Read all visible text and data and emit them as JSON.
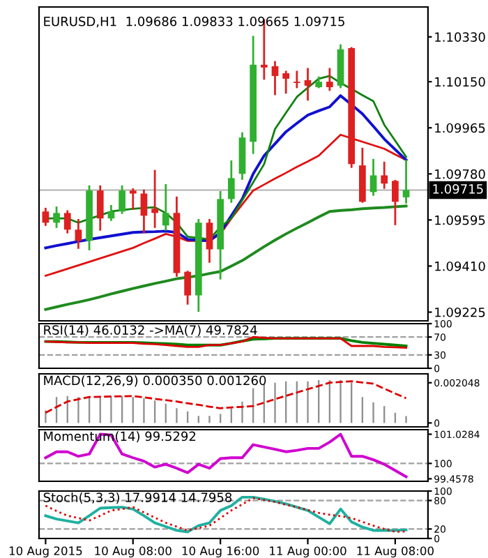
{
  "chart_data": [
    {
      "type": "candlestick",
      "title": "EURUSD,H1  1.09686 1.09833 1.09665 1.09715",
      "categories": [
        null,
        null,
        null,
        null,
        null,
        null,
        null,
        null,
        null,
        null,
        null,
        null,
        null,
        null,
        null,
        null,
        null,
        null,
        null,
        null,
        null,
        null,
        null,
        null,
        null,
        null,
        null,
        null,
        null,
        null,
        null,
        null,
        null,
        null
      ],
      "ohlc": [
        [
          1.09629,
          1.0964,
          1.09575,
          1.09584
        ],
        [
          1.09584,
          1.09645,
          1.09567,
          1.09623
        ],
        [
          1.09623,
          1.0963,
          1.09545,
          1.09556
        ],
        [
          1.09556,
          1.09595,
          1.09483,
          1.09511
        ],
        [
          1.09511,
          1.0973,
          1.09477,
          1.09713
        ],
        [
          1.09713,
          1.0973,
          1.09556,
          1.09601
        ],
        [
          1.09601,
          1.09651,
          1.09595,
          1.09629
        ],
        [
          1.09629,
          1.0973,
          1.09623,
          1.09713
        ],
        [
          1.09713,
          1.09718,
          1.0964,
          1.09701
        ],
        [
          1.09701,
          1.09713,
          1.09545,
          1.09612
        ],
        [
          1.0964,
          1.09792,
          1.09567,
          1.09623
        ],
        [
          1.09573,
          1.09735,
          1.09556,
          1.09623
        ],
        [
          1.09623,
          1.09685,
          1.09371,
          1.09382
        ],
        [
          1.09387,
          1.09387,
          1.09259,
          1.09292
        ],
        [
          1.09292,
          1.09595,
          1.0923,
          1.09584
        ],
        [
          1.09584,
          1.09595,
          1.09427,
          1.09477
        ],
        [
          1.09477,
          1.09707,
          1.0936,
          1.09679
        ],
        [
          1.09679,
          1.0983,
          1.09668,
          1.09763
        ],
        [
          1.0978,
          1.09943,
          1.0976,
          1.09926
        ],
        [
          1.09909,
          1.1033,
          1.09864,
          1.10218
        ],
        [
          1.10218,
          1.10397,
          1.10162,
          1.10207
        ],
        [
          1.10212,
          1.10229,
          1.101,
          1.10173
        ],
        [
          1.10184,
          1.1019,
          1.10106,
          1.10162
        ],
        [
          1.1015,
          1.1019,
          1.10128,
          1.10145
        ],
        [
          1.10156,
          1.10201,
          1.10078,
          1.10134
        ],
        [
          1.10128,
          1.10167,
          1.10128,
          1.1015
        ],
        [
          1.1015,
          1.10201,
          1.10117,
          1.10128
        ],
        [
          1.10134,
          1.10296,
          1.10128,
          1.1028
        ],
        [
          1.10285,
          1.10285,
          1.09808,
          1.09819
        ],
        [
          1.09814,
          1.09881,
          1.09668,
          1.09668
        ],
        [
          1.09707,
          1.09836,
          1.09696,
          1.09774
        ],
        [
          1.09774,
          1.09825,
          1.09724,
          1.09741
        ],
        [
          1.09752,
          1.09752,
          1.09578,
          1.09668
        ],
        [
          1.09686,
          1.09833,
          1.09665,
          1.09715
        ]
      ],
      "colors": [
        "#dd2020",
        "#30b030",
        "#dd2020",
        "#dd2020",
        "#30b030",
        "#dd2020",
        "#30b030",
        "#30b030",
        "#dd2020",
        "#dd2020",
        "#dd2020",
        "#30b030",
        "#dd2020",
        "#dd2020",
        "#30b030",
        "#dd2020",
        "#30b030",
        "#30b030",
        "#30b030",
        "#30b030",
        "#dd2020",
        "#dd2020",
        "#dd2020",
        "#dd2020",
        "#dd2020",
        "#30b030",
        "#dd2020",
        "#30b030",
        "#dd2020",
        "#dd2020",
        "#30b030",
        "#dd2020",
        "#dd2020",
        "#30b030"
      ],
      "series": [
        {
          "type": "line",
          "color": "#1f8a1f",
          "values": [
            1.09236,
            1.09246,
            1.09256,
            1.09265,
            1.09275,
            1.09286,
            1.09298,
            1.09309,
            1.0932,
            1.0933,
            1.0934,
            1.09349,
            1.09359,
            1.09365,
            1.09371,
            1.0938,
            1.09388,
            1.0941,
            1.09432,
            1.0946,
            1.09488,
            1.09514,
            1.09539,
            1.09562,
            1.09584,
            1.09607,
            1.09629,
            1.09633,
            1.09636,
            1.0964,
            1.09643,
            1.09645,
            1.09648,
            1.09651
          ]
        },
        {
          "type": "line",
          "color": "#e01010",
          "values": [
            1.09371,
            1.09385,
            1.09399,
            1.09413,
            1.09427,
            1.09441,
            1.09455,
            1.09469,
            1.09483,
            1.09502,
            1.0952,
            1.09539,
            1.09528,
            1.09511,
            1.09511,
            1.09511,
            1.09539,
            1.09601,
            1.09657,
            1.09713,
            1.09737,
            1.09761,
            1.09784,
            1.09808,
            1.0983,
            1.09853,
            1.09895,
            1.09937,
            1.09923,
            1.09909,
            1.09895,
            1.09881,
            1.09858,
            1.09836
          ]
        },
        {
          "type": "line",
          "color": "#1010d0",
          "values": [
            1.09483,
            1.09492,
            1.095,
            1.09509,
            1.09517,
            1.09524,
            1.09531,
            1.09538,
            1.09545,
            1.09547,
            1.09548,
            1.0955,
            1.09545,
            1.09517,
            1.09514,
            1.09511,
            1.09545,
            1.09612,
            1.09679,
            1.0978,
            1.09853,
            1.09901,
            1.09949,
            1.09983,
            1.10016,
            1.10033,
            1.10049,
            1.10094,
            1.10058,
            1.10021,
            1.09971,
            1.0992,
            1.09878,
            1.09836
          ]
        },
        {
          "type": "line",
          "color": "#108010",
          "values": [
            1.09601,
            1.09601,
            1.09601,
            1.09584,
            1.09599,
            1.09614,
            1.09629,
            1.09635,
            1.0964,
            1.09643,
            1.09646,
            1.09623,
            1.09584,
            1.09528,
            1.09523,
            1.09517,
            1.09567,
            1.09601,
            1.09674,
            1.09746,
            1.09819,
            1.0996,
            1.10025,
            1.10089,
            1.10126,
            1.10162,
            1.10173,
            1.10145,
            1.10121,
            1.10096,
            1.10072,
            1.09977,
            1.09913,
            1.09848
          ]
        }
      ],
      "ylim": [
        1.0919,
        1.1045
      ],
      "yticks": [
        {
          "value": 1.1033,
          "label": "1.10330"
        },
        {
          "value": 1.1015,
          "label": "1.10150"
        },
        {
          "value": 1.09965,
          "label": "1.09965"
        },
        {
          "value": 1.0978,
          "label": "1.09780"
        },
        {
          "value": 1.09595,
          "label": "1.09595"
        },
        {
          "value": 1.0941,
          "label": "1.09410"
        },
        {
          "value": 1.09225,
          "label": "1.09225"
        }
      ],
      "ref_lines": [
        {
          "axis": "y",
          "value": 1.09715,
          "label": "1.09715",
          "color": "#b0b0b0"
        }
      ],
      "tick_labels": "y"
    },
    {
      "type": "line",
      "title": "RSI(14) 46.0132 ->MA(7) 49.7824",
      "categories": [
        null,
        null,
        null,
        null,
        null,
        null,
        null,
        null,
        null,
        null,
        null,
        null,
        null,
        null,
        null,
        null,
        null,
        null,
        null,
        null,
        null,
        null,
        null,
        null,
        null,
        null,
        null,
        null,
        null,
        null,
        null,
        null,
        null,
        null
      ],
      "series": [
        {
          "color": "#008000",
          "values": [
            60,
            60,
            59,
            58,
            58,
            58,
            58,
            58,
            58,
            57,
            56,
            55,
            54,
            52,
            52,
            52,
            52,
            56,
            61,
            65,
            66,
            67,
            67,
            67,
            67,
            67,
            67,
            67,
            62,
            58,
            56,
            54,
            52,
            50
          ]
        },
        {
          "color": "#dd0000",
          "values": [
            60,
            59,
            58,
            58,
            57,
            57,
            57,
            57,
            57,
            55,
            54,
            52,
            50,
            48,
            48,
            52,
            52,
            56,
            60,
            70,
            68,
            67,
            67,
            67,
            67,
            67,
            67,
            67,
            50,
            50,
            50,
            48,
            47,
            46
          ]
        }
      ],
      "ylim": [
        0,
        100
      ],
      "yticks": [
        100,
        70,
        30,
        0
      ],
      "ref_lines": [
        {
          "axis": "y",
          "value": 70,
          "color": "#a0a0a0",
          "line_style": "dashed"
        },
        {
          "axis": "y",
          "value": 30,
          "color": "#a0a0a0",
          "line_style": "dashed"
        }
      ],
      "tick_labels": "y"
    },
    {
      "type": "bar",
      "title": "MACD(12,26,9) 0.000350 0.001260",
      "categories": [
        null,
        null,
        null,
        null,
        null,
        null,
        null,
        null,
        null,
        null,
        null,
        null,
        null,
        null,
        null,
        null,
        null,
        null,
        null,
        null,
        null,
        null,
        null,
        null,
        null,
        null,
        null,
        null,
        null,
        null,
        null,
        null,
        null,
        null
      ],
      "series": [
        {
          "type": "bar",
          "color": "#909090",
          "values": [
            0.00064,
            0.00132,
            0.00137,
            0.00132,
            0.00132,
            0.00137,
            0.00137,
            0.00137,
            0.00132,
            0.00125,
            0.00114,
            0.00098,
            0.00075,
            0.00059,
            0.00036,
            0.00036,
            0.00046,
            0.00075,
            0.00109,
            0.00177,
            0.002,
            0.00205,
            0.00212,
            0.00212,
            0.00212,
            0.00218,
            0.00218,
            0.00218,
            0.00205,
            0.00132,
            0.00105,
            0.00086,
            0.00052,
            0.00035
          ]
        },
        {
          "type": "line",
          "color": "#dd0000",
          "line_style": "dashed",
          "values": [
            0.00052,
            0.00081,
            0.00109,
            0.00121,
            0.00132,
            0.00133,
            0.00135,
            0.00136,
            0.00137,
            0.0013,
            0.00123,
            0.00116,
            0.00109,
            0.001,
            0.00092,
            0.00083,
            0.00075,
            0.00079,
            0.00082,
            0.00086,
            0.00103,
            0.00121,
            0.00138,
            0.00155,
            0.00172,
            0.00188,
            0.00205,
            0.00209,
            0.00212,
            0.00206,
            0.002,
            0.00175,
            0.0015,
            0.00126
          ]
        }
      ],
      "ylim": [
        -0.0002,
        0.0025
      ],
      "yticks": [
        0.002048,
        0
      ],
      "tick_labels": "y"
    },
    {
      "type": "line",
      "title": "Momentum(14) 99.5292",
      "categories": [
        null,
        null,
        null,
        null,
        null,
        null,
        null,
        null,
        null,
        null,
        null,
        null,
        null,
        null,
        null,
        null,
        null,
        null,
        null,
        null,
        null,
        null,
        null,
        null,
        null,
        null,
        null,
        null,
        null,
        null,
        null,
        null,
        null,
        null
      ],
      "series": [
        {
          "color": "#d000d0",
          "values": [
            100.2,
            100.41,
            100.41,
            100.25,
            100.33,
            101.03,
            101.0,
            100.33,
            100.2,
            100.08,
            99.87,
            99.97,
            99.83,
            99.67,
            99.97,
            99.83,
            100.17,
            100.2,
            100.2,
            100.66,
            100.58,
            100.5,
            100.41,
            100.46,
            100.53,
            100.53,
            100.75,
            101.03,
            100.25,
            100.25,
            100.13,
            99.97,
            99.75,
            99.53
          ]
        }
      ],
      "ylim": [
        99.37,
        101.19
      ],
      "yticks": [
        101.0284,
        100,
        99.4578
      ],
      "ref_lines": [
        {
          "axis": "y",
          "value": 100,
          "color": "#a0a0a0",
          "line_style": "dashed"
        }
      ],
      "tick_labels": "y"
    },
    {
      "type": "line",
      "title": "Stoch(5,3,3) 17.9914 14.7958",
      "categories": [
        "10 Aug 2015",
        null,
        null,
        null,
        null,
        null,
        null,
        null,
        "10 Aug 08:00",
        null,
        null,
        null,
        null,
        null,
        null,
        null,
        "10 Aug 16:00",
        null,
        null,
        null,
        null,
        null,
        null,
        null,
        "11 Aug 00:00",
        null,
        null,
        null,
        null,
        null,
        null,
        null,
        "11 Aug 08:00",
        null
      ],
      "series": [
        {
          "color": "#20b0a0",
          "values": [
            48,
            41,
            37,
            33,
            48,
            64,
            65,
            66,
            62,
            48,
            33,
            25,
            17,
            14,
            27,
            33,
            59,
            69,
            87,
            87,
            83,
            78,
            73,
            66,
            59,
            45,
            31,
            62,
            35,
            24,
            17,
            17,
            17,
            18
          ]
        },
        {
          "color": "#dd0000",
          "line_style": "dotted",
          "values": [
            69,
            58,
            48,
            43,
            38,
            48,
            59,
            62,
            66,
            55,
            44,
            33,
            25,
            17,
            22,
            27,
            43,
            59,
            72,
            85,
            81,
            77,
            71,
            66,
            60,
            54,
            50,
            47,
            43,
            35,
            27,
            20,
            14,
            15
          ]
        }
      ],
      "ylim": [
        0,
        100
      ],
      "yticks": [
        100,
        80,
        20,
        0
      ],
      "ref_lines": [
        {
          "axis": "y",
          "value": 80,
          "color": "#a0a0a0",
          "line_style": "dashed"
        },
        {
          "axis": "y",
          "value": 20,
          "color": "#a0a0a0",
          "line_style": "dashed"
        }
      ]
    }
  ]
}
